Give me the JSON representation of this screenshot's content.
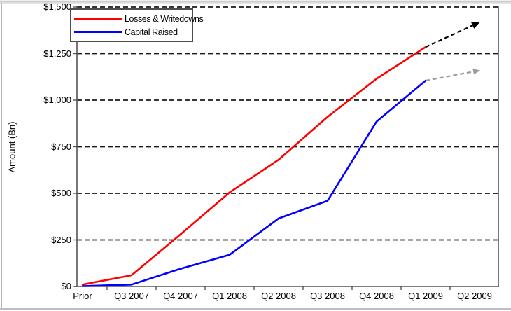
{
  "chart_data": {
    "type": "line",
    "title": "",
    "xlabel": "",
    "ylabel": "Amount (Bn)",
    "ylim": [
      0,
      1500
    ],
    "ytick_step": 250,
    "ytick_labels": [
      "$0",
      "$250",
      "$500",
      "$750",
      "$1,000",
      "$1,250",
      "$1,500"
    ],
    "grid": "horizontal-dashed-black",
    "legend_position": "top-left",
    "categories": [
      "Prior",
      "Q3 2007",
      "Q4 2007",
      "Q1 2008",
      "Q2 2008",
      "Q3 2008",
      "Q4 2008",
      "Q1 2009",
      "Q2 2009"
    ],
    "series": [
      {
        "name": "Losses & Writedowns",
        "color": "#ff0000",
        "values": [
          10,
          60,
          280,
          505,
          680,
          910,
          1115,
          1285
        ]
      },
      {
        "name": "Capital Raised",
        "color": "#0000ff",
        "values": [
          2,
          10,
          95,
          170,
          365,
          460,
          885,
          1105
        ]
      }
    ],
    "projections": [
      {
        "series": "Losses & Writedowns",
        "from_category": "Q1 2009",
        "from_value": 1285,
        "to_category": "Q2 2009",
        "to_value": 1420,
        "style": "dashed-arrow",
        "color": "#000000"
      },
      {
        "series": "Capital Raised",
        "from_category": "Q1 2009",
        "from_value": 1105,
        "to_category": "Q2 2009",
        "to_value": 1160,
        "style": "dashed-arrow",
        "color": "#9a9a9a"
      }
    ]
  },
  "colors": {
    "gridline": "#1a1a1a",
    "axis": "#555555",
    "background": "#ffffff"
  }
}
